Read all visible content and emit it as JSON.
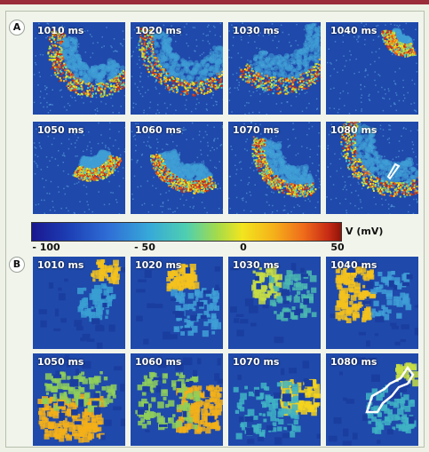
{
  "panels": [
    {
      "letter": "A",
      "frames": [
        {
          "label": "1010 ms"
        },
        {
          "label": "1020 ms"
        },
        {
          "label": "1030 ms"
        },
        {
          "label": "1040 ms"
        },
        {
          "label": "1050 ms"
        },
        {
          "label": "1060 ms"
        },
        {
          "label": "1070 ms"
        },
        {
          "label": "1080 ms"
        }
      ]
    },
    {
      "letter": "B",
      "frames": [
        {
          "label": "1010 ms"
        },
        {
          "label": "1020 ms"
        },
        {
          "label": "1030 ms"
        },
        {
          "label": "1040 ms"
        },
        {
          "label": "1050 ms"
        },
        {
          "label": "1060 ms"
        },
        {
          "label": "1070 ms"
        },
        {
          "label": "1080 ms"
        }
      ]
    }
  ],
  "colorbar": {
    "label": "V (mV)",
    "ticks": [
      "- 100",
      "- 50",
      "0",
      "50"
    ],
    "tick_values": [
      -100,
      -50,
      0,
      50
    ],
    "range": [
      -100,
      50
    ]
  }
}
